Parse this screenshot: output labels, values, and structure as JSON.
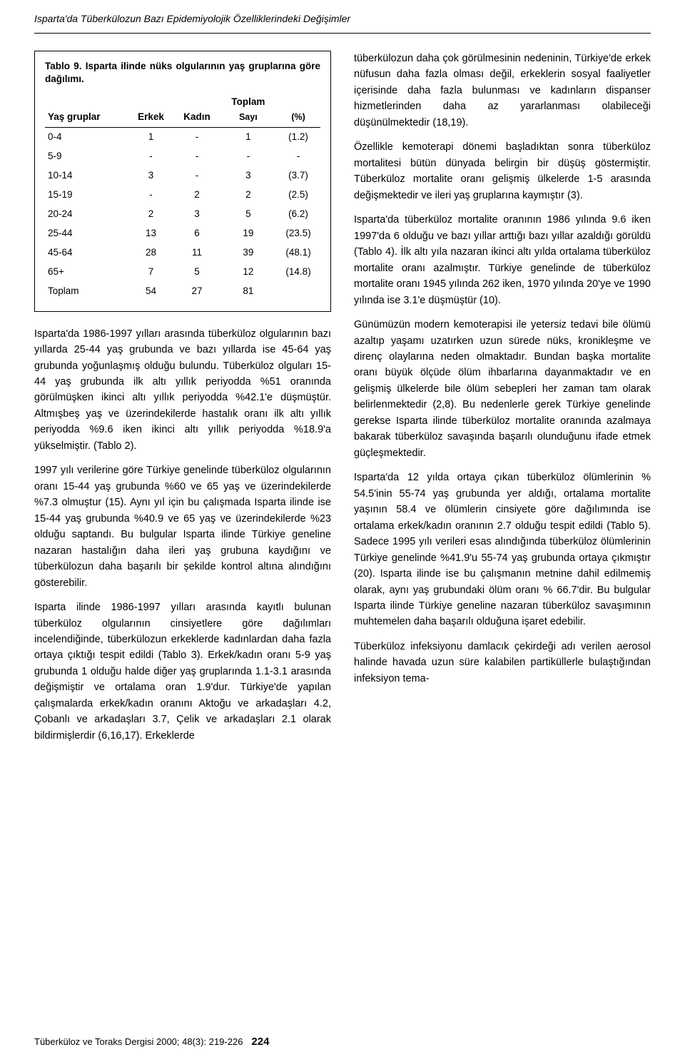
{
  "header": {
    "title": "Isparta'da Tüberkülozun Bazı Epidemiyolojik Özelliklerindeki Değişimler"
  },
  "table9": {
    "caption_label": "Tablo 9.",
    "caption_text": "Isparta ilinde nüks olgularının yaş gruplarına göre dağılımı.",
    "col_group": "Yaş gruplar",
    "col_male": "Erkek",
    "col_female": "Kadın",
    "col_total": "Toplam",
    "col_count": "Sayı",
    "col_pct": "(%)",
    "rows": [
      {
        "g": "0-4",
        "e": "1",
        "k": "-",
        "s": "1",
        "p": "(1.2)"
      },
      {
        "g": "5-9",
        "e": "-",
        "k": "-",
        "s": "-",
        "p": "-"
      },
      {
        "g": "10-14",
        "e": "3",
        "k": "-",
        "s": "3",
        "p": "(3.7)"
      },
      {
        "g": "15-19",
        "e": "-",
        "k": "2",
        "s": "2",
        "p": "(2.5)"
      },
      {
        "g": "20-24",
        "e": "2",
        "k": "3",
        "s": "5",
        "p": "(6.2)"
      },
      {
        "g": "25-44",
        "e": "13",
        "k": "6",
        "s": "19",
        "p": "(23.5)"
      },
      {
        "g": "45-64",
        "e": "28",
        "k": "11",
        "s": "39",
        "p": "(48.1)"
      },
      {
        "g": "65+",
        "e": "7",
        "k": "5",
        "s": "12",
        "p": "(14.8)"
      },
      {
        "g": "Toplam",
        "e": "54",
        "k": "27",
        "s": "81",
        "p": ""
      }
    ]
  },
  "left": {
    "p1": "Isparta'da 1986-1997 yılları arasında tüberküloz olgularının bazı yıllarda 25-44 yaş grubunda ve bazı yıllarda ise 45-64 yaş grubunda yoğunlaşmış olduğu bulundu. Tüberküloz olguları 15-44 yaş grubunda ilk altı yıllık periyodda %51 oranında görülmüşken ikinci altı yıllık periyodda %42.1'e düşmüştür. Altmışbeş yaş ve üzerindekilerde hastalık oranı ilk altı yıllık periyodda %9.6 iken ikinci altı yıllık periyodda %18.9'a yükselmiştir. (Tablo 2).",
    "p2": "1997 yılı verilerine göre Türkiye genelinde tüberküloz olgularının oranı 15-44 yaş grubunda %60 ve 65 yaş ve üzerindekilerde %7.3 olmuştur (15). Aynı yıl için bu çalışmada Isparta ilinde ise 15-44 yaş grubunda %40.9 ve 65 yaş ve üzerindekilerde %23 olduğu saptandı. Bu bulgular Isparta ilinde Türkiye geneline nazaran hastalığın daha ileri yaş grubuna kaydığını ve tüberkülozun daha başarılı bir şekilde kontrol altına alındığını gösterebilir.",
    "p3": "Isparta ilinde 1986-1997 yılları arasında kayıtlı bulunan tüberküloz olgularının cinsiyetlere göre dağılımları incelendiğinde, tüberkülozun erkeklerde kadınlardan daha fazla ortaya çıktığı tespit edildi (Tablo 3). Erkek/kadın oranı 5-9 yaş grubunda 1 olduğu halde diğer yaş gruplarında 1.1-3.1 arasında değişmiştir ve ortalama oran 1.9'dur. Türkiye'de yapılan çalışmalarda erkek/kadın oranını Aktoğu ve arkadaşları 4.2, Çobanlı ve arkadaşları 3.7, Çelik ve arkadaşları 2.1 olarak bildirmişlerdir (6,16,17). Erkeklerde"
  },
  "right": {
    "p1": "tüberkülozun daha çok görülmesinin nedeninin, Türkiye'de erkek nüfusun daha fazla olması değil, erkeklerin sosyal faaliyetler içerisinde daha fazla bulunması ve kadınların dispanser hizmetlerinden daha az yararlanması olabileceği düşünülmektedir (18,19).",
    "p2": "Özellikle kemoterapi dönemi başladıktan sonra tüberküloz mortalitesi bütün dünyada belirgin bir düşüş göstermiştir. Tüberküloz mortalite oranı gelişmiş ülkelerde 1-5 arasında değişmektedir ve ileri yaş gruplarına kaymıştır (3).",
    "p3": "Isparta'da tüberküloz mortalite oranının 1986 yılında 9.6 iken 1997'da 6 olduğu ve bazı yıllar arttığı bazı yıllar azaldığı görüldü (Tablo 4). İlk altı yıla nazaran ikinci altı yılda ortalama tüberküloz mortalite oranı azalmıştır. Türkiye genelinde de tüberküloz mortalite oranı 1945 yılında 262 iken, 1970 yılında 20'ye ve 1990 yılında ise 3.1'e düşmüştür (10).",
    "p4": "Günümüzün modern kemoterapisi ile yetersiz tedavi bile ölümü azaltıp yaşamı uzatırken uzun sürede nüks, kronikleşme ve direnç olaylarına neden olmaktadır. Bundan başka mortalite oranı büyük ölçüde ölüm ihbarlarına dayanmaktadır ve en gelişmiş ülkelerde bile ölüm sebepleri her zaman tam olarak belirlenmektedir (2,8). Bu nedenlerle gerek Türkiye genelinde gerekse Isparta ilinde tüberküloz mortalite oranında azalmaya bakarak tüberküloz savaşında başarılı olunduğunu ifade etmek güçleşmektedir.",
    "p5": "Isparta'da 12 yılda ortaya çıkan tüberküloz ölümlerinin % 54.5'inin 55-74 yaş grubunda yer aldığı, ortalama mortalite yaşının 58.4 ve ölümlerin cinsiyete göre dağılımında ise ortalama erkek/kadın oranının 2.7 olduğu tespit edildi (Tablo 5). Sadece 1995 yılı verileri esas alındığında tüberküloz ölümlerinin Türkiye genelinde %41.9'u 55-74 yaş grubunda ortaya çıkmıştır (20). Isparta ilinde ise bu çalışmanın metnine dahil edilmemiş olarak, aynı yaş grubundaki ölüm oranı % 66.7'dir. Bu bulgular Isparta ilinde Türkiye geneline nazaran tüberküloz savaşımının muhtemelen daha başarılı olduğuna işaret edebilir.",
    "p6": "Tüberküloz infeksiyonu damlacık çekirdeği adı verilen aerosol halinde havada uzun süre kalabilen partiküllerle bulaştığından infeksiyon tema-"
  },
  "footer": {
    "journal": "Tüberküloz ve Toraks Dergisi 2000; 48(3): 219-226",
    "page": "224"
  }
}
